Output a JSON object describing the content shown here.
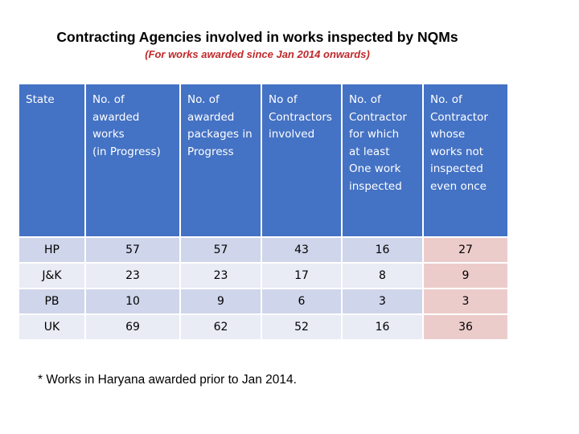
{
  "title": "Contracting Agencies involved in works inspected by NQMs",
  "subtitle": "(For works awarded since Jan 2014 onwards)",
  "table": {
    "headers": [
      "State",
      "No. of\nawarded\nworks\n(in Progress)",
      "No. of\nawarded\npackages in\nProgress",
      "No of\nContractors\ninvolved",
      "No. of\nContractor\nfor which\nat least\nOne work\ninspected",
      "No. of\nContractor\nwhose\nworks not\ninspected\neven once"
    ],
    "rows": [
      [
        "HP",
        "57",
        "57",
        "43",
        "16",
        "27"
      ],
      [
        "J&K",
        "23",
        "23",
        "17",
        "8",
        "9"
      ],
      [
        "PB",
        "10",
        "9",
        "6",
        "3",
        "3"
      ],
      [
        "UK",
        "69",
        "62",
        "52",
        "16",
        "36"
      ]
    ]
  },
  "footnote": "* Works in Haryana awarded prior to Jan 2014.",
  "colors": {
    "header_bg": "#4472c4",
    "row_dark": "#cfd5ea",
    "row_light": "#e9ebf5",
    "highlight_column": "#eccccb",
    "subtitle_text": "#c0282a"
  }
}
